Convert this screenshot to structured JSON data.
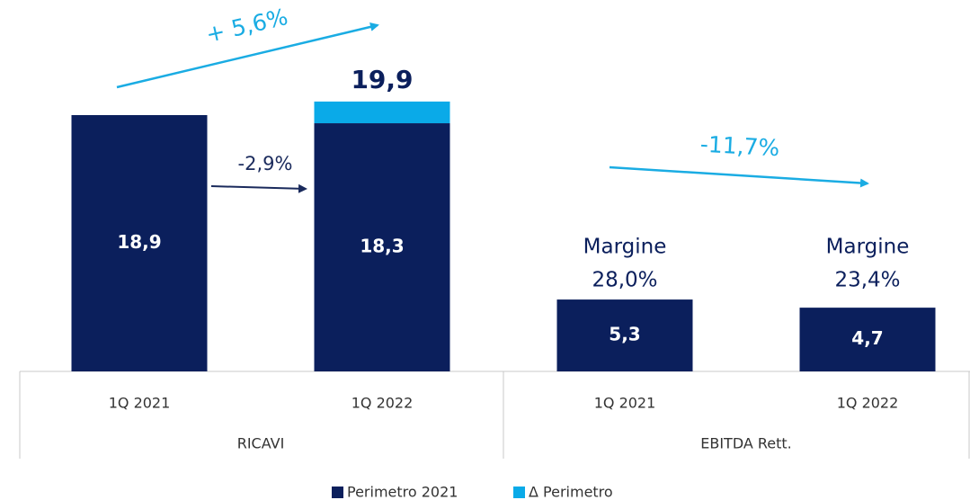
{
  "chart_data": {
    "type": "stacked_bar",
    "categories": [
      "1Q 2021",
      "1Q 2022",
      "1Q 2021",
      "1Q 2022"
    ],
    "groups": [
      "RICAVI",
      "EBITDA Rett."
    ],
    "series": [
      {
        "name": "Perimetro 2021",
        "color": "#0b1f5c",
        "values": [
          18.9,
          18.3,
          5.3,
          4.7
        ],
        "value_labels": [
          "18,9",
          "18,3",
          "5,3",
          "4,7"
        ]
      },
      {
        "name": "Δ Perimetro",
        "color": "#0aaae8",
        "values": [
          null,
          1.6,
          null,
          null
        ]
      }
    ],
    "ylim": [
      0,
      20
    ],
    "total_label": "19,9",
    "annotations": [
      "+ 5,6%",
      "-2,9%",
      "-11,7%"
    ],
    "margin_labels": [
      {
        "label": "Margine",
        "value": "28,0%"
      },
      {
        "label": "Margine",
        "value": "23,4%"
      }
    ],
    "legend": "bottom"
  }
}
